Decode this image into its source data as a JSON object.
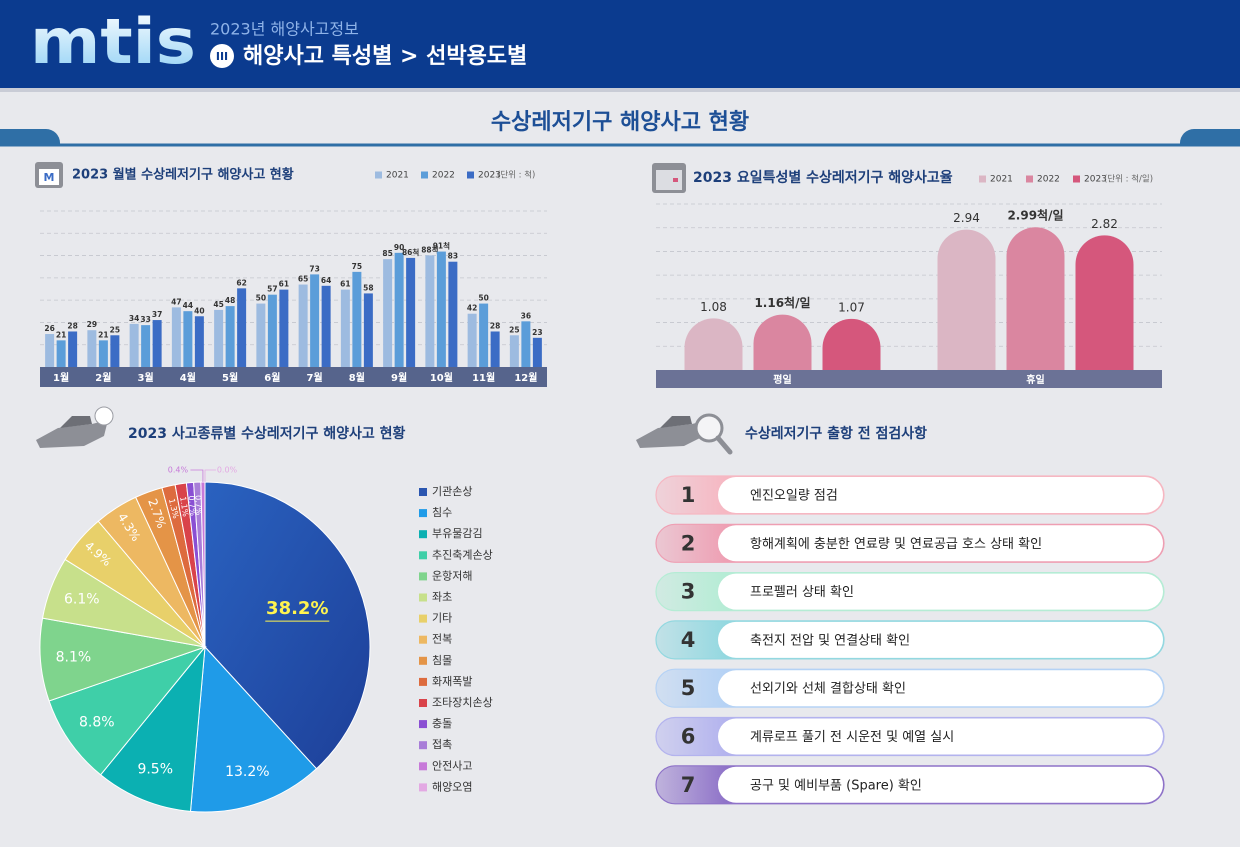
{
  "header": {
    "logo": "mtis",
    "subtitle": "2023년 해양사고정보",
    "section_number": "III",
    "title": "해양사고 특성별 > 선박용도별"
  },
  "page_title": "수상레저기구 해양사고 현황",
  "chart_data": [
    {
      "type": "bar",
      "title": "2023 월별 수상레저기구 해양사고 현황",
      "icon_label": "M",
      "unit": "(단위 : 척)",
      "categories": [
        "1월",
        "2월",
        "3월",
        "4월",
        "5월",
        "6월",
        "7월",
        "8월",
        "9월",
        "10월",
        "11월",
        "12월"
      ],
      "series": [
        {
          "name": "2021",
          "color": "#9dbbe0",
          "values": [
            26,
            29,
            34,
            47,
            45,
            50,
            65,
            61,
            85,
            88,
            42,
            25
          ],
          "value_labels": [
            "26",
            "29",
            "34",
            "47",
            "45",
            "50",
            "65",
            "61",
            "85",
            "88척",
            "42",
            "25"
          ]
        },
        {
          "name": "2022",
          "color": "#5b9dd9",
          "values": [
            21,
            21,
            33,
            44,
            48,
            57,
            73,
            75,
            90,
            91,
            50,
            36
          ],
          "value_labels": [
            "21",
            "21",
            "33",
            "44",
            "48",
            "57",
            "73",
            "75",
            "90",
            "91척",
            "50",
            "36"
          ]
        },
        {
          "name": "2023",
          "color": "#3b6cc5",
          "values": [
            28,
            25,
            37,
            40,
            62,
            61,
            64,
            58,
            86,
            83,
            28,
            23
          ],
          "value_labels": [
            "28",
            "25",
            "37",
            "40",
            "62",
            "61",
            "64",
            "58",
            "86척",
            "83",
            "28",
            "23"
          ]
        }
      ],
      "grid": true
    },
    {
      "type": "bar",
      "rounded": true,
      "title": "2023 요일특성별 수상레저기구 해양사고율",
      "unit": "(단위 : 척/일)",
      "categories": [
        "평일",
        "휴일"
      ],
      "series": [
        {
          "name": "2021",
          "color": "#dbb6c4",
          "values": [
            1.08,
            2.94
          ],
          "value_labels": [
            "1.08",
            "2.94"
          ]
        },
        {
          "name": "2022",
          "color": "#da86a0",
          "values": [
            1.16,
            2.99
          ],
          "value_labels": [
            "1.16척/일",
            "2.99척/일"
          ]
        },
        {
          "name": "2023",
          "color": "#d5577c",
          "values": [
            1.07,
            2.82
          ],
          "value_labels": [
            "1.07",
            "2.82"
          ]
        }
      ],
      "grid": true
    },
    {
      "type": "pie",
      "title": "2023 사고종류별 수상레저기구 해양사고 현황",
      "categories": [
        "기관손상",
        "침수",
        "부유물감김",
        "추진축계손상",
        "운항저해",
        "좌초",
        "기타",
        "전복",
        "침몰",
        "화재폭발",
        "조타장치손상",
        "충돌",
        "접촉",
        "안전사고",
        "해양오염"
      ],
      "values": [
        38.2,
        13.2,
        9.5,
        8.8,
        8.1,
        6.1,
        4.9,
        4.3,
        2.7,
        1.3,
        1.1,
        0.7,
        0.7,
        0.4,
        0.0
      ],
      "value_labels": [
        "38.2%",
        "13.2%",
        "9.5%",
        "8.8%",
        "8.1%",
        "6.1%",
        "4.9%",
        "4.3%",
        "2.7%",
        "1.3%",
        "1.1%",
        "0.7%",
        "0.7%",
        "0.4%",
        "0.0%"
      ],
      "colors": [
        "#2b56b0",
        "#1f9be8",
        "#0bb0b2",
        "#3fcfa8",
        "#7fd48d",
        "#c7e08b",
        "#e8d06a",
        "#edb862",
        "#e49447",
        "#dd6b3e",
        "#d9434a",
        "#8a4fd3",
        "#a87dd8",
        "#c77ad9",
        "#e3a9e3"
      ]
    }
  ],
  "checklist": {
    "title": "수상레저기구 출항 전 점검사항",
    "items": [
      {
        "number": "1",
        "text": "엔진오일량 점검",
        "color": "#f6b7c2"
      },
      {
        "number": "2",
        "text": "항해계획에 충분한 연료량 및 연료공급 호스 상태 확인",
        "color": "#ee9fb3"
      },
      {
        "number": "3",
        "text": "프로펠러 상태 확인",
        "color": "#b5ecd5"
      },
      {
        "number": "4",
        "text": "축전지 전압 및 연결상태 확인",
        "color": "#93d8e0"
      },
      {
        "number": "5",
        "text": "선외기와 선체 결합상태 확인",
        "color": "#b5d2f5"
      },
      {
        "number": "6",
        "text": "계류로프 풀기 전 시운전 및 예열 실시",
        "color": "#b3b3ee"
      },
      {
        "number": "7",
        "text": "공구 및 예비부품 (Spare) 확인",
        "color": "#8e72c8"
      }
    ]
  }
}
